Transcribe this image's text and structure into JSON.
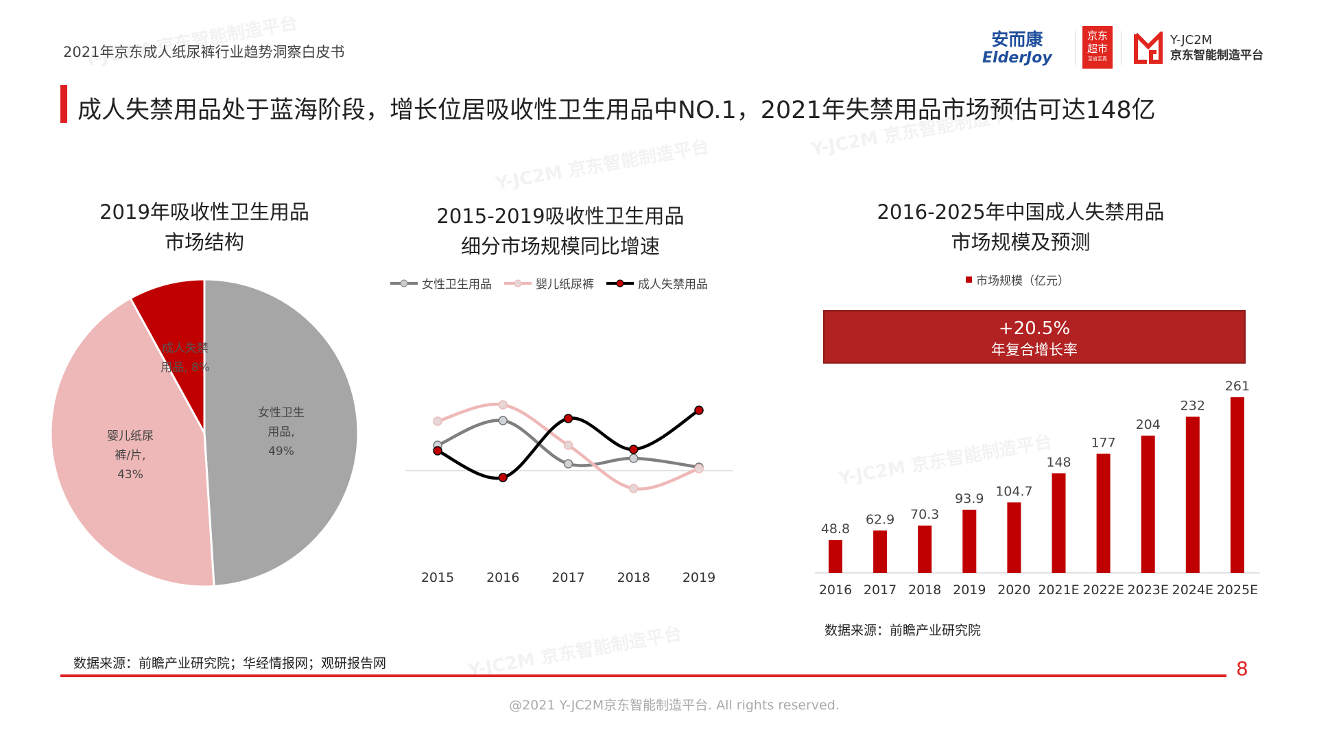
{
  "header": {
    "doc_title": "2021年京东成人纸尿裤行业趋势洞察白皮书",
    "main_title": "成人失禁用品处于蓝海阶段，增长位居吸收性卫生用品中NO.1，2021年失禁用品市场预估可达148亿"
  },
  "logos": {
    "elderjoy_cn": "安而康",
    "elderjoy_en": "ElderJoy",
    "jd_market": "京东超市",
    "jd_market_sub": "至省至真",
    "yjc2m_en": "Y-JC2M",
    "yjc2m_cn": "京东智能制造平台"
  },
  "watermark": "Y-JC2M 京东智能制造平台",
  "colors": {
    "accent": "#e02020",
    "gray": "#a6a6a6",
    "pink": "#efb8b8",
    "red": "#c00000",
    "black": "#000000"
  },
  "chart_data": [
    {
      "type": "pie",
      "title_line1": "2019年吸收性卫生用品",
      "title_line2": "市场结构",
      "slices": [
        {
          "label_line1": "女性卫生",
          "label_line2": "用品,",
          "label_line3": "49%",
          "value": 49,
          "color": "#a6a6a6"
        },
        {
          "label_line1": "婴儿纸尿",
          "label_line2": "裤/片,",
          "label_line3": "43%",
          "value": 43,
          "color": "#efb8b8"
        },
        {
          "label_line1": "成人失禁",
          "label_line2": "用品, 8%",
          "label_line3": "",
          "value": 8,
          "color": "#c00000"
        }
      ]
    },
    {
      "type": "line",
      "title_line1": "2015-2019吸收性卫生用品",
      "title_line2": "细分市场规模同比增速",
      "x": [
        "2015",
        "2016",
        "2017",
        "2018",
        "2019"
      ],
      "y_axis_labels": "none (values estimated, relative to zero baseline)",
      "legend": "top",
      "series": [
        {
          "name": "女性卫生用品",
          "color": "#7f7f7f",
          "values": [
            3.7,
            7.3,
            1.0,
            1.8,
            0.5
          ]
        },
        {
          "name": "婴儿纸尿裤",
          "color": "#efb8b8",
          "values": [
            7.2,
            9.6,
            3.7,
            -2.6,
            0.3
          ]
        },
        {
          "name": "成人失禁用品",
          "color": "#000000",
          "values": [
            2.9,
            -1.0,
            7.6,
            3.1,
            8.8
          ]
        }
      ]
    },
    {
      "type": "bar",
      "title_line1": "2016-2025年中国成人失禁用品",
      "title_line2": "市场规模及预测",
      "legend": "top",
      "series_name": "市场规模（亿元）",
      "color": "#c00000",
      "categories": [
        "2016",
        "2017",
        "2018",
        "2019",
        "2020",
        "2021E",
        "2022E",
        "2023E",
        "2024E",
        "2025E"
      ],
      "values": [
        48.8,
        62.9,
        70.3,
        93.9,
        104.7,
        148,
        177,
        204,
        232,
        261
      ],
      "value_labels": [
        "48.8",
        "62.9",
        "70.3",
        "93.9",
        "104.7",
        "148",
        "177",
        "204",
        "232",
        "261"
      ],
      "annotation_value": "+20.5%",
      "annotation_label": "年复合增长率",
      "source": "数据来源：前瞻产业研究院"
    }
  ],
  "footer": {
    "source": "数据来源：前瞻产业研究院；华经情报网；观研报告网",
    "page": "8",
    "copyright": "@2021 Y-JC2M京东智能制造平台. All rights reserved."
  }
}
